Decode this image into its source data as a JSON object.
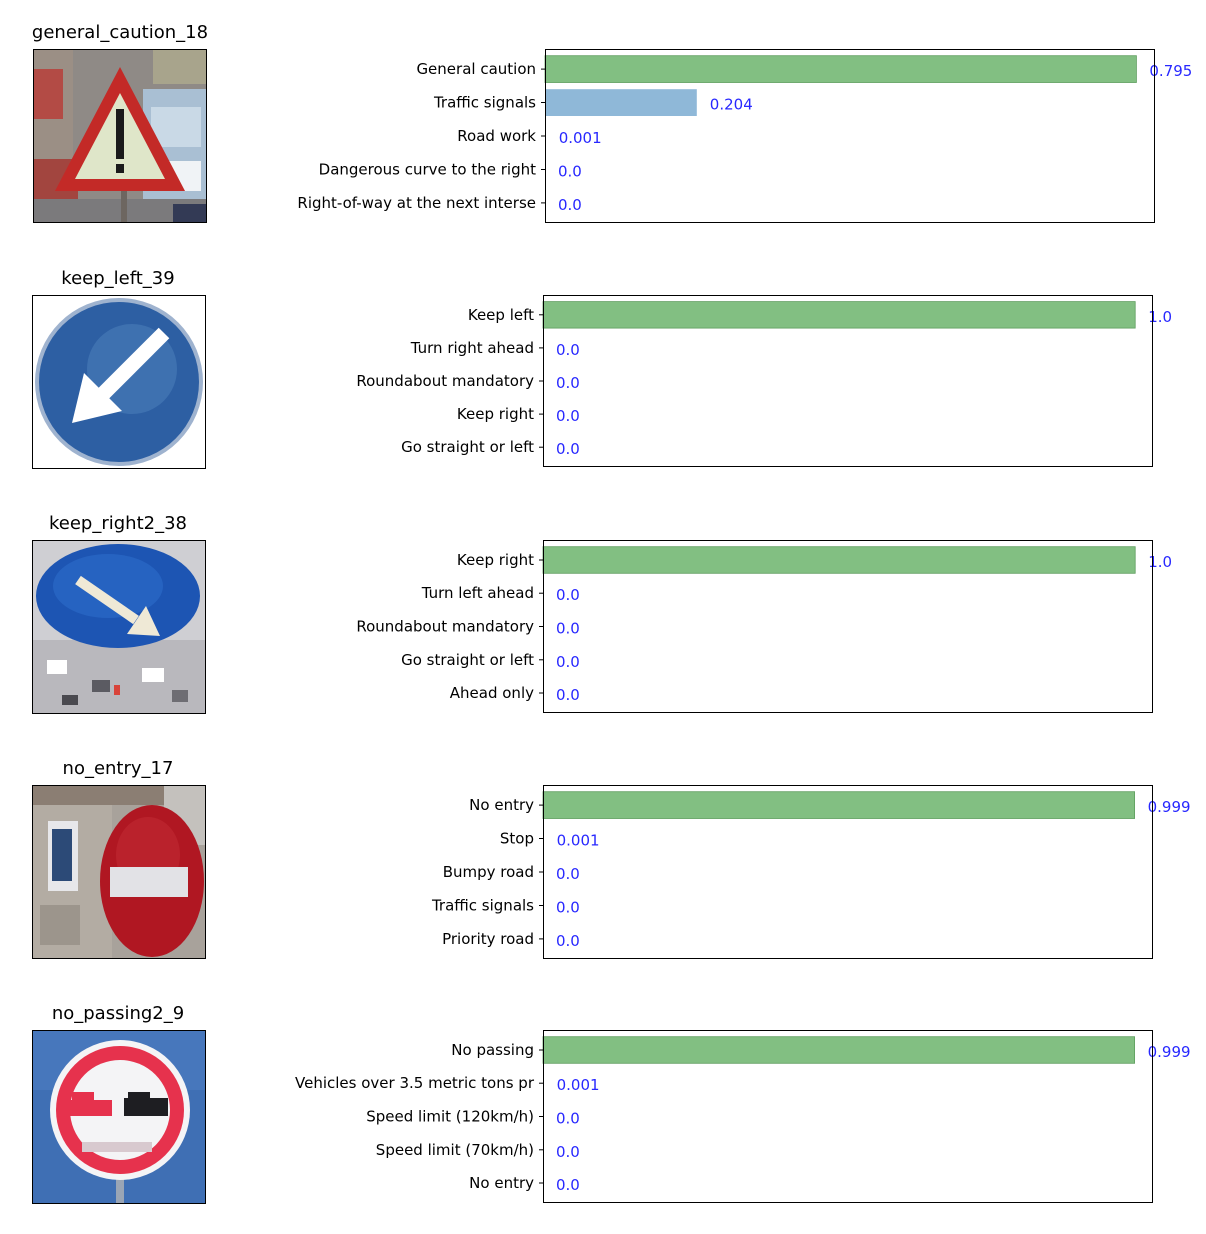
{
  "colors": {
    "top_bar": "#82bf82",
    "other_bar": "#8fb8d8",
    "value_text": "#2828ff",
    "axes": "#000000"
  },
  "chart_data": [
    {
      "type": "bar",
      "orientation": "horizontal",
      "image_title": "general_caution_18",
      "image_icon": "warning-triangle-sign",
      "categories": [
        "General caution",
        "Traffic signals",
        "Road work",
        "Dangerous curve to the right",
        "Right-of-way at the next interse"
      ],
      "values": [
        0.795,
        0.204,
        0.001,
        0.0,
        0.0
      ],
      "value_labels": [
        "0.795",
        "0.204",
        "0.001",
        "0.0",
        "0.0"
      ],
      "xlim": [
        0,
        0.82
      ]
    },
    {
      "type": "bar",
      "orientation": "horizontal",
      "image_title": "keep_left_39",
      "image_icon": "keep-left-sign",
      "categories": [
        "Keep left",
        "Turn right ahead",
        "Roundabout mandatory",
        "Keep right",
        "Go straight or left"
      ],
      "values": [
        1.0,
        0.0,
        0.0,
        0.0,
        0.0
      ],
      "value_labels": [
        "1.0",
        "0.0",
        "0.0",
        "0.0",
        "0.0"
      ],
      "xlim": [
        0,
        1.03
      ]
    },
    {
      "type": "bar",
      "orientation": "horizontal",
      "image_title": "keep_right2_38",
      "image_icon": "keep-right-sign",
      "categories": [
        "Keep right",
        "Turn left ahead",
        "Roundabout mandatory",
        "Go straight or left",
        "Ahead only"
      ],
      "values": [
        1.0,
        0.0,
        0.0,
        0.0,
        0.0
      ],
      "value_labels": [
        "1.0",
        "0.0",
        "0.0",
        "0.0",
        "0.0"
      ],
      "xlim": [
        0,
        1.03
      ]
    },
    {
      "type": "bar",
      "orientation": "horizontal",
      "image_title": "no_entry_17",
      "image_icon": "no-entry-sign",
      "categories": [
        "No entry",
        "Stop",
        "Bumpy road",
        "Traffic signals",
        "Priority road"
      ],
      "values": [
        0.999,
        0.001,
        0.0,
        0.0,
        0.0
      ],
      "value_labels": [
        "0.999",
        "0.001",
        "0.0",
        "0.0",
        "0.0"
      ],
      "xlim": [
        0,
        1.03
      ]
    },
    {
      "type": "bar",
      "orientation": "horizontal",
      "image_title": "no_passing2_9",
      "image_icon": "no-passing-sign",
      "categories": [
        "No passing",
        "Vehicles over 3.5 metric tons pr",
        "Speed limit (120km/h)",
        "Speed limit (70km/h)",
        "No entry"
      ],
      "values": [
        0.999,
        0.001,
        0.0,
        0.0,
        0.0
      ],
      "value_labels": [
        "0.999",
        "0.001",
        "0.0",
        "0.0",
        "0.0"
      ],
      "xlim": [
        0,
        1.03
      ]
    }
  ]
}
